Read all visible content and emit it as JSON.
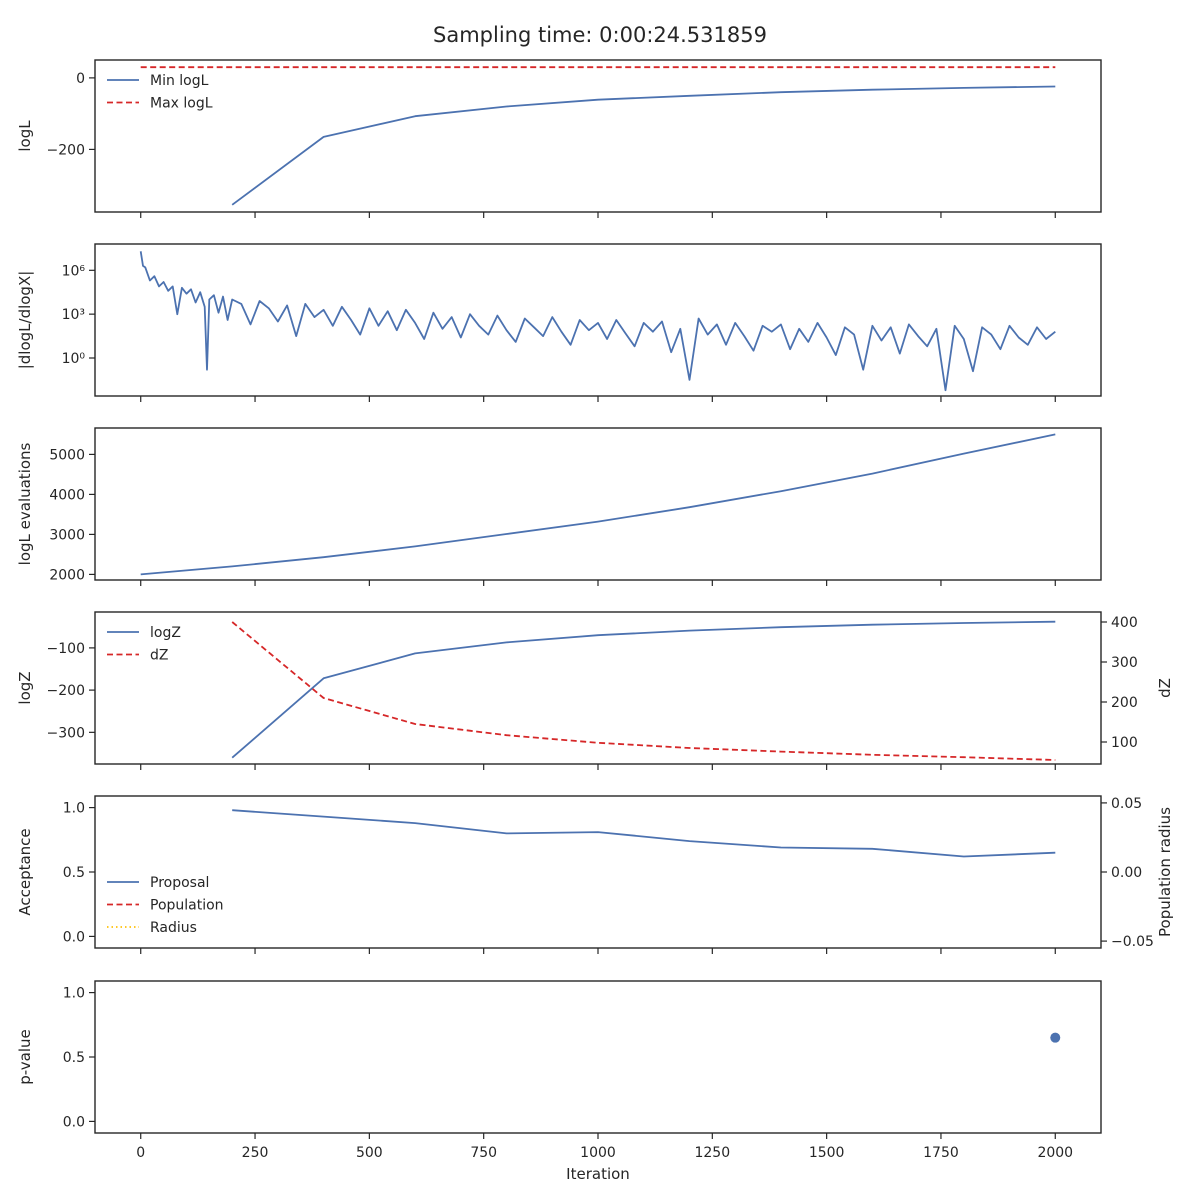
{
  "chart_data": {
    "type": "line",
    "title": "Sampling time: 0:00:24.531859",
    "x_axis": {
      "label": "Iteration",
      "range": [
        -100,
        2100
      ],
      "ticks": [
        0,
        250,
        500,
        750,
        1000,
        1250,
        1500,
        1750,
        2000
      ],
      "tick_labels": [
        "0",
        "250",
        "500",
        "750",
        "1000",
        "1250",
        "1500",
        "1750",
        "2000"
      ]
    },
    "panels": [
      {
        "ylabel": "logL",
        "ylim": [
          -375,
          50
        ],
        "yticks": [
          0,
          -200
        ],
        "ytick_labels": [
          "0",
          "−200"
        ],
        "legend": "top-left",
        "series": [
          {
            "name": "Min logL",
            "color": "#4c72b0",
            "style": "solid",
            "x": [
              200,
              400,
              600,
              800,
              1000,
              1200,
              1400,
              1600,
              1800,
              2000
            ],
            "y": [
              -355,
              -165,
              -107,
              -80,
              -61,
              -50,
              -40,
              -33,
              -28,
              -24
            ]
          },
          {
            "name": "Max logL",
            "color": "#d62728",
            "style": "dashed",
            "x": [
              0,
              2000
            ],
            "y": [
              30,
              30
            ]
          }
        ]
      },
      {
        "ylabel": "|dlogL/dlogX|",
        "yscale": "log",
        "ylim_log10": [
          -2.6,
          7.8
        ],
        "yticks_log10": [
          0,
          3,
          6
        ],
        "ytick_labels": [
          "10⁰",
          "10³",
          "10⁶"
        ],
        "series": [
          {
            "name": "",
            "color": "#4c72b0",
            "style": "solid",
            "x": [
              0,
              5,
              10,
              20,
              30,
              40,
              50,
              60,
              70,
              80,
              90,
              100,
              110,
              120,
              130,
              140,
              145,
              150,
              160,
              170,
              180,
              190,
              200,
              220,
              240,
              260,
              280,
              300,
              320,
              340,
              360,
              380,
              400,
              420,
              440,
              460,
              480,
              500,
              520,
              540,
              560,
              580,
              600,
              620,
              640,
              660,
              680,
              700,
              720,
              740,
              760,
              780,
              800,
              820,
              840,
              860,
              880,
              900,
              920,
              940,
              960,
              980,
              1000,
              1020,
              1040,
              1060,
              1080,
              1100,
              1120,
              1140,
              1160,
              1180,
              1200,
              1220,
              1240,
              1260,
              1280,
              1300,
              1320,
              1340,
              1360,
              1380,
              1400,
              1420,
              1440,
              1460,
              1480,
              1500,
              1520,
              1540,
              1560,
              1580,
              1600,
              1620,
              1640,
              1660,
              1680,
              1700,
              1720,
              1740,
              1760,
              1780,
              1800,
              1820,
              1840,
              1860,
              1880,
              1900,
              1920,
              1940,
              1960,
              1980,
              2000
            ],
            "y": [
              7.3,
              6.3,
              6.2,
              5.3,
              5.6,
              4.9,
              5.2,
              4.6,
              4.9,
              3.0,
              4.8,
              4.4,
              4.7,
              3.8,
              4.5,
              3.5,
              -0.8,
              4.0,
              4.3,
              3.1,
              4.2,
              2.6,
              4.0,
              3.7,
              2.3,
              3.9,
              3.4,
              2.5,
              3.6,
              1.5,
              3.7,
              2.8,
              3.3,
              2.2,
              3.5,
              2.6,
              1.6,
              3.4,
              2.2,
              3.2,
              1.9,
              3.3,
              2.4,
              1.3,
              3.1,
              2.0,
              2.8,
              1.4,
              3.0,
              2.2,
              1.6,
              2.9,
              1.9,
              1.1,
              2.7,
              2.1,
              1.5,
              2.8,
              1.8,
              0.9,
              2.6,
              1.9,
              2.4,
              1.3,
              2.6,
              1.7,
              0.8,
              2.4,
              1.8,
              2.5,
              0.4,
              2.0,
              -1.5,
              2.7,
              1.6,
              2.3,
              0.9,
              2.4,
              1.5,
              0.5,
              2.2,
              1.8,
              2.3,
              0.6,
              2.0,
              1.1,
              2.4,
              1.4,
              0.2,
              2.1,
              1.6,
              -0.8,
              2.2,
              1.2,
              2.1,
              0.3,
              2.3,
              1.5,
              0.8,
              2.0,
              -2.2,
              2.2,
              1.3,
              -0.9,
              2.1,
              1.6,
              0.6,
              2.2,
              1.4,
              0.9,
              2.1,
              1.3,
              1.8
            ]
          }
        ]
      },
      {
        "ylabel": "logL evaluations",
        "ylim": [
          1860,
          5660
        ],
        "yticks": [
          2000,
          3000,
          4000,
          5000
        ],
        "ytick_labels": [
          "2000",
          "3000",
          "4000",
          "5000"
        ],
        "series": [
          {
            "name": "",
            "color": "#4c72b0",
            "style": "solid",
            "x": [
              0,
              200,
              400,
              600,
              800,
              1000,
              1200,
              1400,
              1600,
              1800,
              2000
            ],
            "y": [
              2000,
              2200,
              2430,
              2700,
              3010,
              3320,
              3680,
              4080,
              4520,
              5020,
              5500
            ]
          }
        ]
      },
      {
        "ylabel": "logZ",
        "ylim": [
          -375,
          -15
        ],
        "yticks": [
          -100,
          -200,
          -300
        ],
        "ytick_labels": [
          "−100",
          "−200",
          "−300"
        ],
        "ylabel2": "dZ",
        "ylim2": [
          45,
          425
        ],
        "yticks2": [
          400,
          300,
          200,
          100
        ],
        "ytick_labels2": [
          "400",
          "300",
          "200",
          "100"
        ],
        "legend": "top-left",
        "series": [
          {
            "name": "logZ",
            "color": "#4c72b0",
            "style": "solid",
            "axis": "left",
            "x": [
              200,
              400,
              600,
              800,
              1000,
              1200,
              1400,
              1600,
              1800,
              2000
            ],
            "y": [
              -360,
              -172,
              -113,
              -87,
              -70,
              -59,
              -51,
              -45,
              -41,
              -38
            ]
          },
          {
            "name": "dZ",
            "color": "#d62728",
            "style": "dashed",
            "axis": "right",
            "x": [
              200,
              400,
              600,
              800,
              1000,
              1200,
              1400,
              1600,
              1800,
              2000
            ],
            "y": [
              400,
              210,
              145,
              117,
              98,
              85,
              76,
              68,
              62,
              55
            ]
          }
        ]
      },
      {
        "ylabel": "Acceptance",
        "ylim": [
          -0.09,
          1.09
        ],
        "yticks": [
          1.0,
          0.5,
          0.0
        ],
        "ytick_labels": [
          "1.0",
          "0.5",
          "0.0"
        ],
        "ylabel2": "Population radius",
        "ylim2": [
          -0.055,
          0.055
        ],
        "yticks2": [
          0.05,
          0.0,
          -0.05
        ],
        "ytick_labels2": [
          "0.05",
          "0.00",
          "−0.05"
        ],
        "legend": "center-left",
        "series": [
          {
            "name": "Proposal",
            "color": "#4c72b0",
            "style": "solid",
            "axis": "left",
            "x": [
              200,
              400,
              600,
              800,
              1000,
              1200,
              1400,
              1600,
              1800,
              2000
            ],
            "y": [
              0.98,
              0.93,
              0.88,
              0.8,
              0.81,
              0.74,
              0.69,
              0.68,
              0.62,
              0.65
            ]
          },
          {
            "name": "Population",
            "color": "#d62728",
            "style": "dashed",
            "axis": "left",
            "x": [],
            "y": []
          },
          {
            "name": "Radius",
            "color": "#ffc107",
            "style": "dotted",
            "axis": "right",
            "x": [],
            "y": []
          }
        ]
      },
      {
        "ylabel": "p-value",
        "ylim": [
          -0.09,
          1.09
        ],
        "yticks": [
          1.0,
          0.5,
          0.0
        ],
        "ytick_labels": [
          "1.0",
          "0.5",
          "0.0"
        ],
        "series": [
          {
            "name": "",
            "color": "#4c72b0",
            "style": "marker",
            "x": [
              2000
            ],
            "y": [
              0.65
            ]
          }
        ]
      }
    ]
  }
}
